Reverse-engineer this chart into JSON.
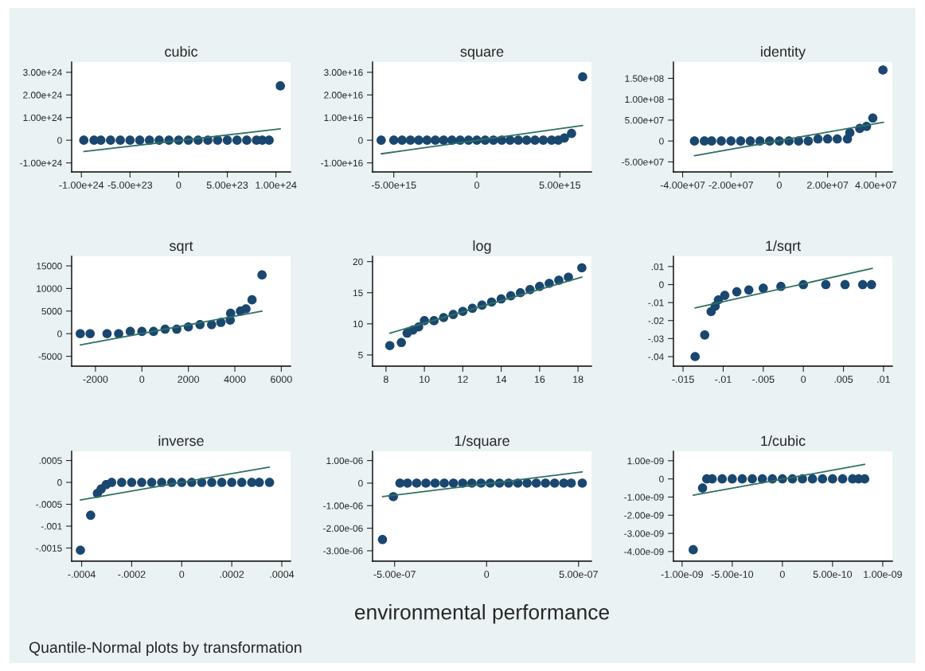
{
  "chart_data": [
    {
      "type": "scatter",
      "title": "cubic",
      "xlim": [
        -1.1e+24,
        1.15e+24
      ],
      "ylim": [
        -1.4e+24,
        3.45e+24
      ],
      "grid": false,
      "xticks": [
        {
          "value": -1e+24,
          "label": "-1.00e+24"
        },
        {
          "value": -5e+23,
          "label": "-5.00e+23"
        },
        0,
        {
          "value": 5e+23,
          "label": "5.00e+23"
        },
        {
          "value": 1e+24,
          "label": "1.00e+24"
        }
      ],
      "yticks": [
        {
          "value": -1e+24,
          "label": "-1.00e+24"
        },
        0,
        {
          "value": 1e+24,
          "label": "1.00e+24"
        },
        {
          "value": 2e+24,
          "label": "2.00e+24"
        },
        {
          "value": 3e+24,
          "label": "3.00e+24"
        }
      ],
      "series": [
        {
          "marker": "circle",
          "color": "#1a476f",
          "x": [
            -9.75e+23,
            -8.7e+23,
            -8e+23,
            -7e+23,
            -6e+23,
            -5e+23,
            -4e+23,
            -3e+23,
            -2e+23,
            -1e+23,
            0,
            1e+23,
            2e+23,
            3e+23,
            4e+23,
            5e+23,
            6e+23,
            7e+23,
            8e+23,
            8.6e+23,
            9.3e+23,
            1.045e+24
          ],
          "values": [
            0,
            0,
            0,
            0,
            0,
            0,
            0,
            0,
            0,
            0,
            0,
            0,
            0,
            0,
            0,
            0,
            0,
            0,
            0,
            0,
            0,
            2.4e+24
          ]
        },
        {
          "type": "line",
          "color": "#2e7062",
          "x": [
            -9.75e+23,
            1.045e+24
          ],
          "values": [
            -5e+23,
            5e+23
          ]
        }
      ]
    },
    {
      "type": "scatter",
      "title": "square",
      "xlim": [
        -6280000000000000.0,
        6900000000000000.0
      ],
      "ylim": [
        -1.4e+16,
        3.45e+16
      ],
      "grid": false,
      "xticks": [
        {
          "value": -5000000000000000.0,
          "label": "-5.00e+15"
        },
        0,
        {
          "value": 5000000000000000.0,
          "label": "5.00e+15"
        }
      ],
      "yticks": [
        {
          "value": -1e+16,
          "label": "-1.00e+16"
        },
        0,
        {
          "value": 1e+16,
          "label": "1.00e+16"
        },
        {
          "value": 2e+16,
          "label": "2.00e+16"
        },
        {
          "value": 3e+16,
          "label": "3.00e+16"
        }
      ],
      "series": [
        {
          "marker": "circle",
          "color": "#1a476f",
          "x": [
            -5760000000000000.0,
            -5000000000000000.0,
            -4500000000000000.0,
            -4000000000000000.0,
            -3500000000000000.0,
            -3000000000000000.0,
            -2500000000000000.0,
            -2000000000000000.0,
            -1500000000000000.0,
            -1000000000000000.0,
            -500000000000000.0,
            0,
            500000000000000.0,
            1000000000000000.0,
            1500000000000000.0,
            2000000000000000.0,
            2500000000000000.0,
            3000000000000000.0,
            3500000000000000.0,
            4000000000000000.0,
            4500000000000000.0,
            4900000000000000.0,
            5270000000000000.0,
            5700000000000000.0,
            6370000000000000.0
          ],
          "values": [
            0,
            0,
            0,
            0,
            0,
            0,
            0,
            0,
            0,
            0,
            0,
            0,
            0,
            0,
            0,
            0,
            0,
            0,
            0,
            0,
            0,
            0,
            1000000000000000.0,
            3000000000000000.0,
            2.8e+16
          ]
        },
        {
          "type": "line",
          "color": "#2e7062",
          "x": [
            -5760000000000000.0,
            6370000000000000.0
          ],
          "values": [
            -6000000000000000.0,
            6500000000000000.0
          ]
        }
      ]
    },
    {
      "type": "scatter",
      "title": "identity",
      "xlim": [
        -43800000.0,
        46800000.0
      ],
      "ylim": [
        -74000000.0,
        189000000.0
      ],
      "grid": false,
      "xticks": [
        {
          "value": -40000000.0,
          "label": "-4.00e+07"
        },
        {
          "value": -20000000.0,
          "label": "-2.00e+07"
        },
        0,
        {
          "value": 20000000.0,
          "label": "2.00e+07"
        },
        {
          "value": 40000000.0,
          "label": "4.00e+07"
        }
      ],
      "yticks": [
        {
          "value": -50000000.0,
          "label": "-5.00e+07"
        },
        0,
        {
          "value": 50000000.0,
          "label": "5.00e+07"
        },
        {
          "value": 100000000.0,
          "label": "1.00e+08"
        },
        {
          "value": 150000000.0,
          "label": "1.50e+08"
        }
      ],
      "series": [
        {
          "marker": "circle",
          "color": "#1a476f",
          "x": [
            -35100000.0,
            -31000000.0,
            -28000000.0,
            -24000000.0,
            -20000000.0,
            -16000000.0,
            -12000000.0,
            -8000000.0,
            -4000000.0,
            0,
            4000000.0,
            8000000.0,
            12000000.0,
            16000000.0,
            20000000.0,
            24000000.0,
            28200000.0,
            29200000.0,
            33300000.0,
            36100000.0,
            38700000.0,
            42900000.0
          ],
          "values": [
            0,
            0,
            0,
            0,
            0,
            0,
            0,
            0,
            0,
            0,
            0,
            0,
            0,
            5000000.0,
            5000000.0,
            5000000.0,
            5000000.0,
            20000000.0,
            30000000.0,
            35000000.0,
            55000000.0,
            170000000.0
          ]
        },
        {
          "type": "line",
          "color": "#2e7062",
          "x": [
            -35100000.0,
            43100000.0
          ],
          "values": [
            -35000000.0,
            45000000.0
          ]
        }
      ]
    },
    {
      "type": "scatter",
      "title": "sqrt",
      "xlim": [
        -3024,
        6398
      ],
      "ylim": [
        -7180,
        17120
      ],
      "grid": false,
      "xticks": [
        -2000,
        0,
        2000,
        4000,
        6000
      ],
      "yticks": [
        -5000,
        0,
        5000,
        10000,
        15000
      ],
      "series": [
        {
          "marker": "circle",
          "color": "#1a476f",
          "x": [
            -2653,
            -2228,
            -1500,
            -1000,
            -500,
            0,
            500,
            1000,
            1500,
            2000,
            2500,
            3000,
            3400,
            3800,
            3820,
            4240,
            4480,
            4740,
            5170
          ],
          "values": [
            0,
            0,
            0,
            0,
            500,
            500,
            500,
            1000,
            1000,
            1500,
            2000,
            2000,
            2500,
            3000,
            4500,
            5000,
            5500,
            7500,
            13000
          ]
        },
        {
          "type": "line",
          "color": "#2e7062",
          "x": [
            -2653,
            5170
          ],
          "values": [
            -2500,
            5000
          ]
        }
      ]
    },
    {
      "type": "scatter",
      "title": "log",
      "xlim": [
        7.3,
        18.7
      ],
      "ylim": [
        3.2,
        20.85
      ],
      "grid": false,
      "xticks": [
        8,
        10,
        12,
        14,
        16,
        18
      ],
      "yticks": [
        5,
        10,
        15,
        20
      ],
      "series": [
        {
          "marker": "circle",
          "color": "#1a476f",
          "x": [
            8.2,
            8.8,
            9.1,
            9.4,
            9.7,
            10,
            10.5,
            11,
            11.5,
            12,
            12.5,
            13,
            13.5,
            14,
            14.5,
            15,
            15.5,
            16,
            16.5,
            17,
            17.5,
            18.2
          ],
          "values": [
            6.5,
            7,
            8.5,
            9,
            9.5,
            10.5,
            10.5,
            11,
            11.5,
            12,
            12.5,
            13,
            13.5,
            14,
            14.5,
            15,
            15.5,
            16,
            16.5,
            17,
            17.5,
            19
          ]
        },
        {
          "type": "line",
          "color": "#2e7062",
          "x": [
            8.2,
            18.2
          ],
          "values": [
            8.5,
            17.5
          ]
        }
      ]
    },
    {
      "type": "scatter",
      "title": "1/sqrt",
      "xlim": [
        -0.0162,
        0.0111
      ],
      "ylim": [
        -0.0453,
        0.0157
      ],
      "grid": false,
      "xticks": [
        {
          "value": -0.015,
          "label": "-.015"
        },
        {
          "value": -0.01,
          "label": "-.01"
        },
        {
          "value": -0.005,
          "label": "-.005"
        },
        0,
        {
          "value": 0.005,
          "label": ".005"
        },
        {
          "value": 0.01,
          "label": ".01"
        }
      ],
      "yticks": [
        {
          "value": -0.04,
          "label": "-.04"
        },
        {
          "value": -0.03,
          "label": "-.03"
        },
        {
          "value": -0.02,
          "label": "-.02"
        },
        {
          "value": -0.01,
          "label": "-.01"
        },
        0,
        {
          "value": 0.01,
          "label": ".01"
        }
      ],
      "series": [
        {
          "marker": "circle",
          "color": "#1a476f",
          "x": [
            -0.0135,
            -0.0123,
            -0.0115,
            -0.011,
            -0.0106,
            -0.0098,
            -0.0083,
            -0.0068,
            -0.005,
            -0.0028,
            0,
            0.0028,
            0.0052,
            0.0074,
            0.0085
          ],
          "values": [
            -0.04,
            -0.028,
            -0.015,
            -0.012,
            -0.0085,
            -0.006,
            -0.004,
            -0.003,
            -0.002,
            -0.001,
            0,
            0,
            0,
            0,
            0
          ]
        },
        {
          "type": "line",
          "color": "#2e7062",
          "x": [
            -0.0135,
            0.0086
          ],
          "values": [
            -0.013,
            0.009
          ]
        }
      ]
    },
    {
      "type": "scatter",
      "title": "inverse",
      "xlim": [
        -0.00044,
        0.000435
      ],
      "ylim": [
        -0.0018,
        0.00071
      ],
      "grid": false,
      "annotations": [
        "Quantile-Normal plots by transformation"
      ],
      "xticks": [
        {
          "value": -0.0004,
          "label": "-.0004"
        },
        {
          "value": -0.0002,
          "label": "-.0002"
        },
        0,
        {
          "value": 0.0002,
          "label": ".0002"
        },
        {
          "value": 0.0004,
          "label": ".0004"
        }
      ],
      "yticks": [
        {
          "value": -0.0015,
          "label": "-.0015"
        },
        {
          "value": -0.001,
          "label": "-.001"
        },
        {
          "value": -0.0005,
          "label": "-.0005"
        },
        0,
        {
          "value": 0.0005,
          "label": ".0005"
        }
      ],
      "series": [
        {
          "marker": "circle",
          "color": "#1a476f",
          "x": [
            -0.000405,
            -0.000364,
            -0.000337,
            -0.000322,
            -0.000302,
            -0.00028,
            -0.00024,
            -0.0002,
            -0.00016,
            -0.00012,
            -8e-05,
            -4e-05,
            0,
            4e-05,
            8e-05,
            0.00012,
            0.00016,
            0.0002,
            0.00024,
            0.00028,
            0.00031,
            0.000351
          ],
          "values": [
            -0.00155,
            -0.00075,
            -0.00025,
            -0.00015,
            -5e-05,
            0,
            0,
            0,
            0,
            0,
            0,
            0,
            0,
            0,
            0,
            0,
            0,
            0,
            0,
            0,
            0,
            0
          ]
        },
        {
          "type": "line",
          "color": "#2e7062",
          "x": [
            -0.000405,
            0.00035
          ],
          "values": [
            -0.0004,
            0.00035
          ]
        }
      ]
    },
    {
      "type": "scatter",
      "title": "1/square",
      "xlabel": "environmental performance",
      "xlim": [
        -6.2e-07,
        5.7e-07
      ],
      "ylim": [
        -3.46e-06,
        1.41e-06
      ],
      "grid": false,
      "xticks": [
        {
          "value": -5e-07,
          "label": "-5.00e-07"
        },
        0,
        {
          "value": 5e-07,
          "label": "5.00e-07"
        }
      ],
      "yticks": [
        {
          "value": -3e-06,
          "label": "-3.00e-06"
        },
        {
          "value": -2e-06,
          "label": "-2.00e-06"
        },
        {
          "value": -1e-06,
          "label": "-1.00e-06"
        },
        0,
        {
          "value": 1e-06,
          "label": "1.00e-06"
        }
      ],
      "series": [
        {
          "marker": "circle",
          "color": "#1a476f",
          "x": [
            -5.66e-07,
            -5.07e-07,
            -4.71e-07,
            -4.3e-07,
            -3.8e-07,
            -3.3e-07,
            -2.8e-07,
            -2.3e-07,
            -1.8e-07,
            -1.3e-07,
            -8e-08,
            -3e-08,
            2e-08,
            7e-08,
            1.2e-07,
            1.7e-07,
            2.2e-07,
            2.7e-07,
            3.2e-07,
            3.7e-07,
            4.2e-07,
            4.6e-07,
            5.2e-07
          ],
          "values": [
            -2.5e-06,
            -6e-07,
            0,
            0,
            0,
            0,
            0,
            0,
            0,
            0,
            0,
            0,
            0,
            0,
            0,
            0,
            0,
            0,
            0,
            0,
            0,
            0,
            0
          ]
        },
        {
          "type": "line",
          "color": "#2e7062",
          "x": [
            -5.66e-07,
            5.2e-07
          ],
          "values": [
            -6e-07,
            5e-07
          ]
        }
      ]
    },
    {
      "type": "scatter",
      "title": "1/cubic",
      "xlim": [
        -1.086e-09,
        1.096e-09
      ],
      "ylim": [
        -4.53e-09,
        1.52e-09
      ],
      "grid": false,
      "xticks": [
        {
          "value": -1e-09,
          "label": "-1.00e-09"
        },
        {
          "value": -5e-10,
          "label": "-5.00e-10"
        },
        0,
        {
          "value": 5e-10,
          "label": "5.00e-10"
        },
        {
          "value": 1e-09,
          "label": "1.00e-09"
        }
      ],
      "yticks": [
        {
          "value": -4e-09,
          "label": "-4.00e-09"
        },
        {
          "value": -3e-09,
          "label": "-3.00e-09"
        },
        {
          "value": -2e-09,
          "label": "-2.00e-09"
        },
        {
          "value": -1e-09,
          "label": "-1.00e-09"
        },
        0,
        {
          "value": 1e-09,
          "label": "1.00e-09"
        }
      ],
      "series": [
        {
          "marker": "circle",
          "color": "#1a476f",
          "x": [
            -8.89e-10,
            -7.96e-10,
            -7.54e-10,
            -7e-10,
            -6e-10,
            -5e-10,
            -4e-10,
            -3e-10,
            -2e-10,
            -1e-10,
            0,
            1e-10,
            2e-10,
            3e-10,
            4e-10,
            5e-10,
            6e-10,
            7e-10,
            7.6e-10,
            8.2e-10
          ],
          "values": [
            -3.9e-09,
            -5e-10,
            0,
            0,
            0,
            0,
            0,
            0,
            0,
            0,
            0,
            0,
            0,
            0,
            0,
            0,
            0,
            0,
            0,
            0
          ]
        },
        {
          "type": "line",
          "color": "#2e7062",
          "x": [
            -8.89e-10,
            8.2e-10
          ],
          "values": [
            -9e-10,
            8e-10
          ]
        }
      ]
    }
  ]
}
